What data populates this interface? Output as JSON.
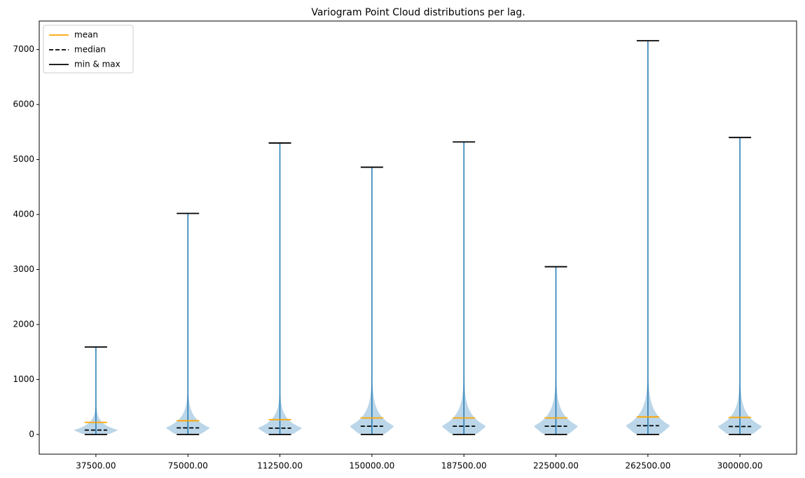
{
  "chart_data": {
    "type": "violin",
    "title": "Variogram Point Cloud distributions per lag.",
    "categories": [
      "37500.00",
      "75000.00",
      "112500.00",
      "150000.00",
      "187500.00",
      "225000.00",
      "262500.00",
      "300000.00"
    ],
    "body_color": "#1f77b4",
    "series": [
      {
        "name": "mean",
        "color": "#ffa500",
        "linestyle": "solid",
        "values": [
          220,
          250,
          270,
          300,
          300,
          300,
          320,
          310
        ]
      },
      {
        "name": "median",
        "color": "#000000",
        "linestyle": "dashed",
        "values": [
          80,
          120,
          115,
          150,
          150,
          150,
          160,
          145
        ]
      },
      {
        "name": "min & max",
        "color": "#000000",
        "linestyle": "solid",
        "min": [
          0,
          0,
          0,
          0,
          0,
          0,
          0,
          0
        ],
        "max": [
          1590,
          4020,
          5300,
          4860,
          5320,
          3050,
          7160,
          5400
        ]
      }
    ],
    "ylim": [
      -358,
      7518
    ],
    "yticks": [
      0,
      1000,
      2000,
      3000,
      4000,
      5000,
      6000,
      7000
    ],
    "legend": "upper left"
  }
}
